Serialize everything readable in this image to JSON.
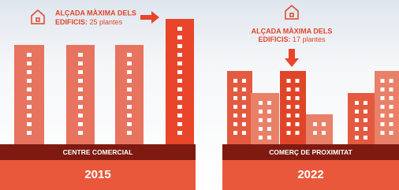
{
  "panels": [
    {
      "heading": "ALÇADA MÀXIMA DELS",
      "label": "EDIFICIS:",
      "value": "25 plantes",
      "band": "CENTRE COMERCIAL",
      "year": "2015"
    },
    {
      "heading": "ALÇADA MÀXIMA DELS",
      "label": "EDIFICIS:",
      "value": "17 plantes",
      "band": "COMERÇ DE PROXIMITAT",
      "year": "2022"
    }
  ]
}
